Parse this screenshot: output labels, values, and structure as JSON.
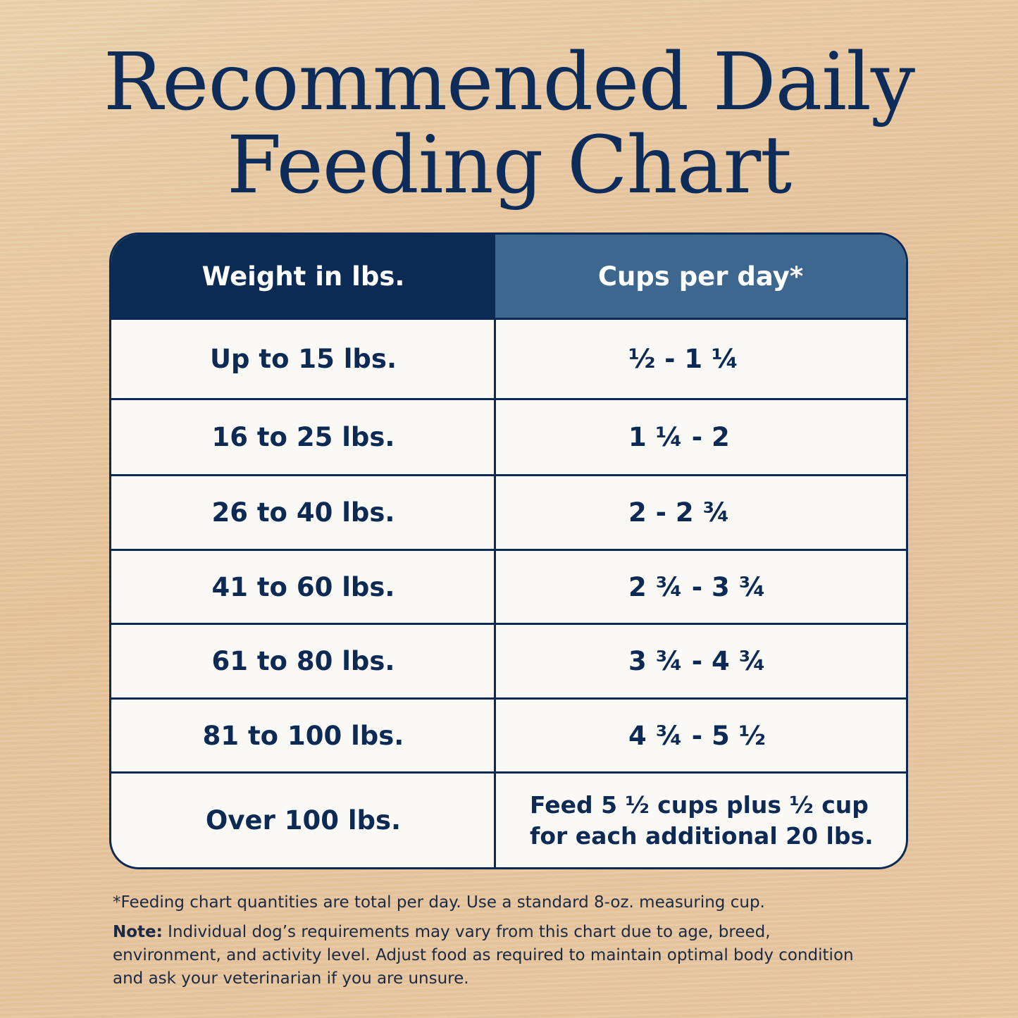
{
  "header": {
    "title_lines": [
      "Recommended Daily",
      "Feeding Chart"
    ]
  },
  "table": {
    "columns": [
      "Weight in lbs.",
      "Cups per day*"
    ],
    "rows": [
      [
        "Up to 15 lbs.",
        "½ - 1 ¼"
      ],
      [
        "16 to 25 lbs.",
        "1 ¼ - 2"
      ],
      [
        "26 to 40 lbs.",
        "2 - 2 ¾"
      ],
      [
        "41 to 60 lbs.",
        "2 ¾ - 3 ¾"
      ],
      [
        "61 to 80 lbs.",
        "3 ¾ - 4 ¾"
      ],
      [
        "81 to 100 lbs.",
        "4 ¾ - 5 ½"
      ],
      [
        "Over 100 lbs.",
        "Feed 5 ½ cups plus ½ cup for each additional 20 lbs."
      ]
    ]
  },
  "footnotes": {
    "asterisk": "*Feeding chart quantities are total per day. Use a standard 8-oz. measuring cup.",
    "note_label": "Note:",
    "note_text": "Individual dog’s requirements may vary from this chart due to age, breed, environment, and activity level. Adjust food as required to maintain optimal body condition and ask your veterinarian if you are unsure."
  }
}
